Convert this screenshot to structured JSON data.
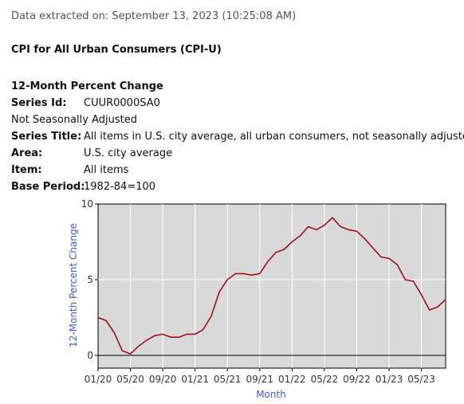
{
  "extracted": "Data extracted on: September 13, 2023 (10:25:08 AM)",
  "report_title": "CPI for All Urban Consumers (CPI-U)",
  "subtitle": "12-Month Percent Change",
  "meta": {
    "series_id_label": "Series Id:",
    "series_id": "CUUR0000SA0",
    "seasonal": "Not Seasonally Adjusted",
    "series_title_label": "Series Title:",
    "series_title": "All items in U.S. city average, all urban consumers, not seasonally adjusted",
    "area_label": "Area:",
    "area": "U.S. city average",
    "item_label": "Item:",
    "item": "All items",
    "base_period_label": "Base Period:",
    "base_period": "1982-84=100"
  },
  "chart_data": {
    "type": "line",
    "title": "",
    "xlabel": "Month",
    "ylabel": "12-Month Percent Change",
    "ylim": [
      0,
      10
    ],
    "yticks": [
      0,
      5,
      10
    ],
    "xticks": [
      "01/20",
      "05/20",
      "09/20",
      "01/21",
      "05/21",
      "09/21",
      "01/22",
      "05/22",
      "09/22",
      "01/23",
      "05/23"
    ],
    "grid": true,
    "line_color": "#a01010",
    "x": [
      "01/20",
      "02/20",
      "03/20",
      "04/20",
      "05/20",
      "06/20",
      "07/20",
      "08/20",
      "09/20",
      "10/20",
      "11/20",
      "12/20",
      "01/21",
      "02/21",
      "03/21",
      "04/21",
      "05/21",
      "06/21",
      "07/21",
      "08/21",
      "09/21",
      "10/21",
      "11/21",
      "12/21",
      "01/22",
      "02/22",
      "03/22",
      "04/22",
      "05/22",
      "06/22",
      "07/22",
      "08/22",
      "09/22",
      "10/22",
      "11/22",
      "12/22",
      "01/23",
      "02/23",
      "03/23",
      "04/23",
      "05/23",
      "06/23",
      "07/23",
      "08/23"
    ],
    "values": [
      2.5,
      2.3,
      1.5,
      0.3,
      0.1,
      0.6,
      1.0,
      1.3,
      1.4,
      1.2,
      1.2,
      1.4,
      1.4,
      1.7,
      2.6,
      4.2,
      5.0,
      5.4,
      5.4,
      5.3,
      5.4,
      6.2,
      6.8,
      7.0,
      7.5,
      7.9,
      8.5,
      8.3,
      8.6,
      9.1,
      8.5,
      8.3,
      8.2,
      7.7,
      7.1,
      6.5,
      6.4,
      6.0,
      5.0,
      4.9,
      4.0,
      3.0,
      3.2,
      3.7
    ]
  }
}
